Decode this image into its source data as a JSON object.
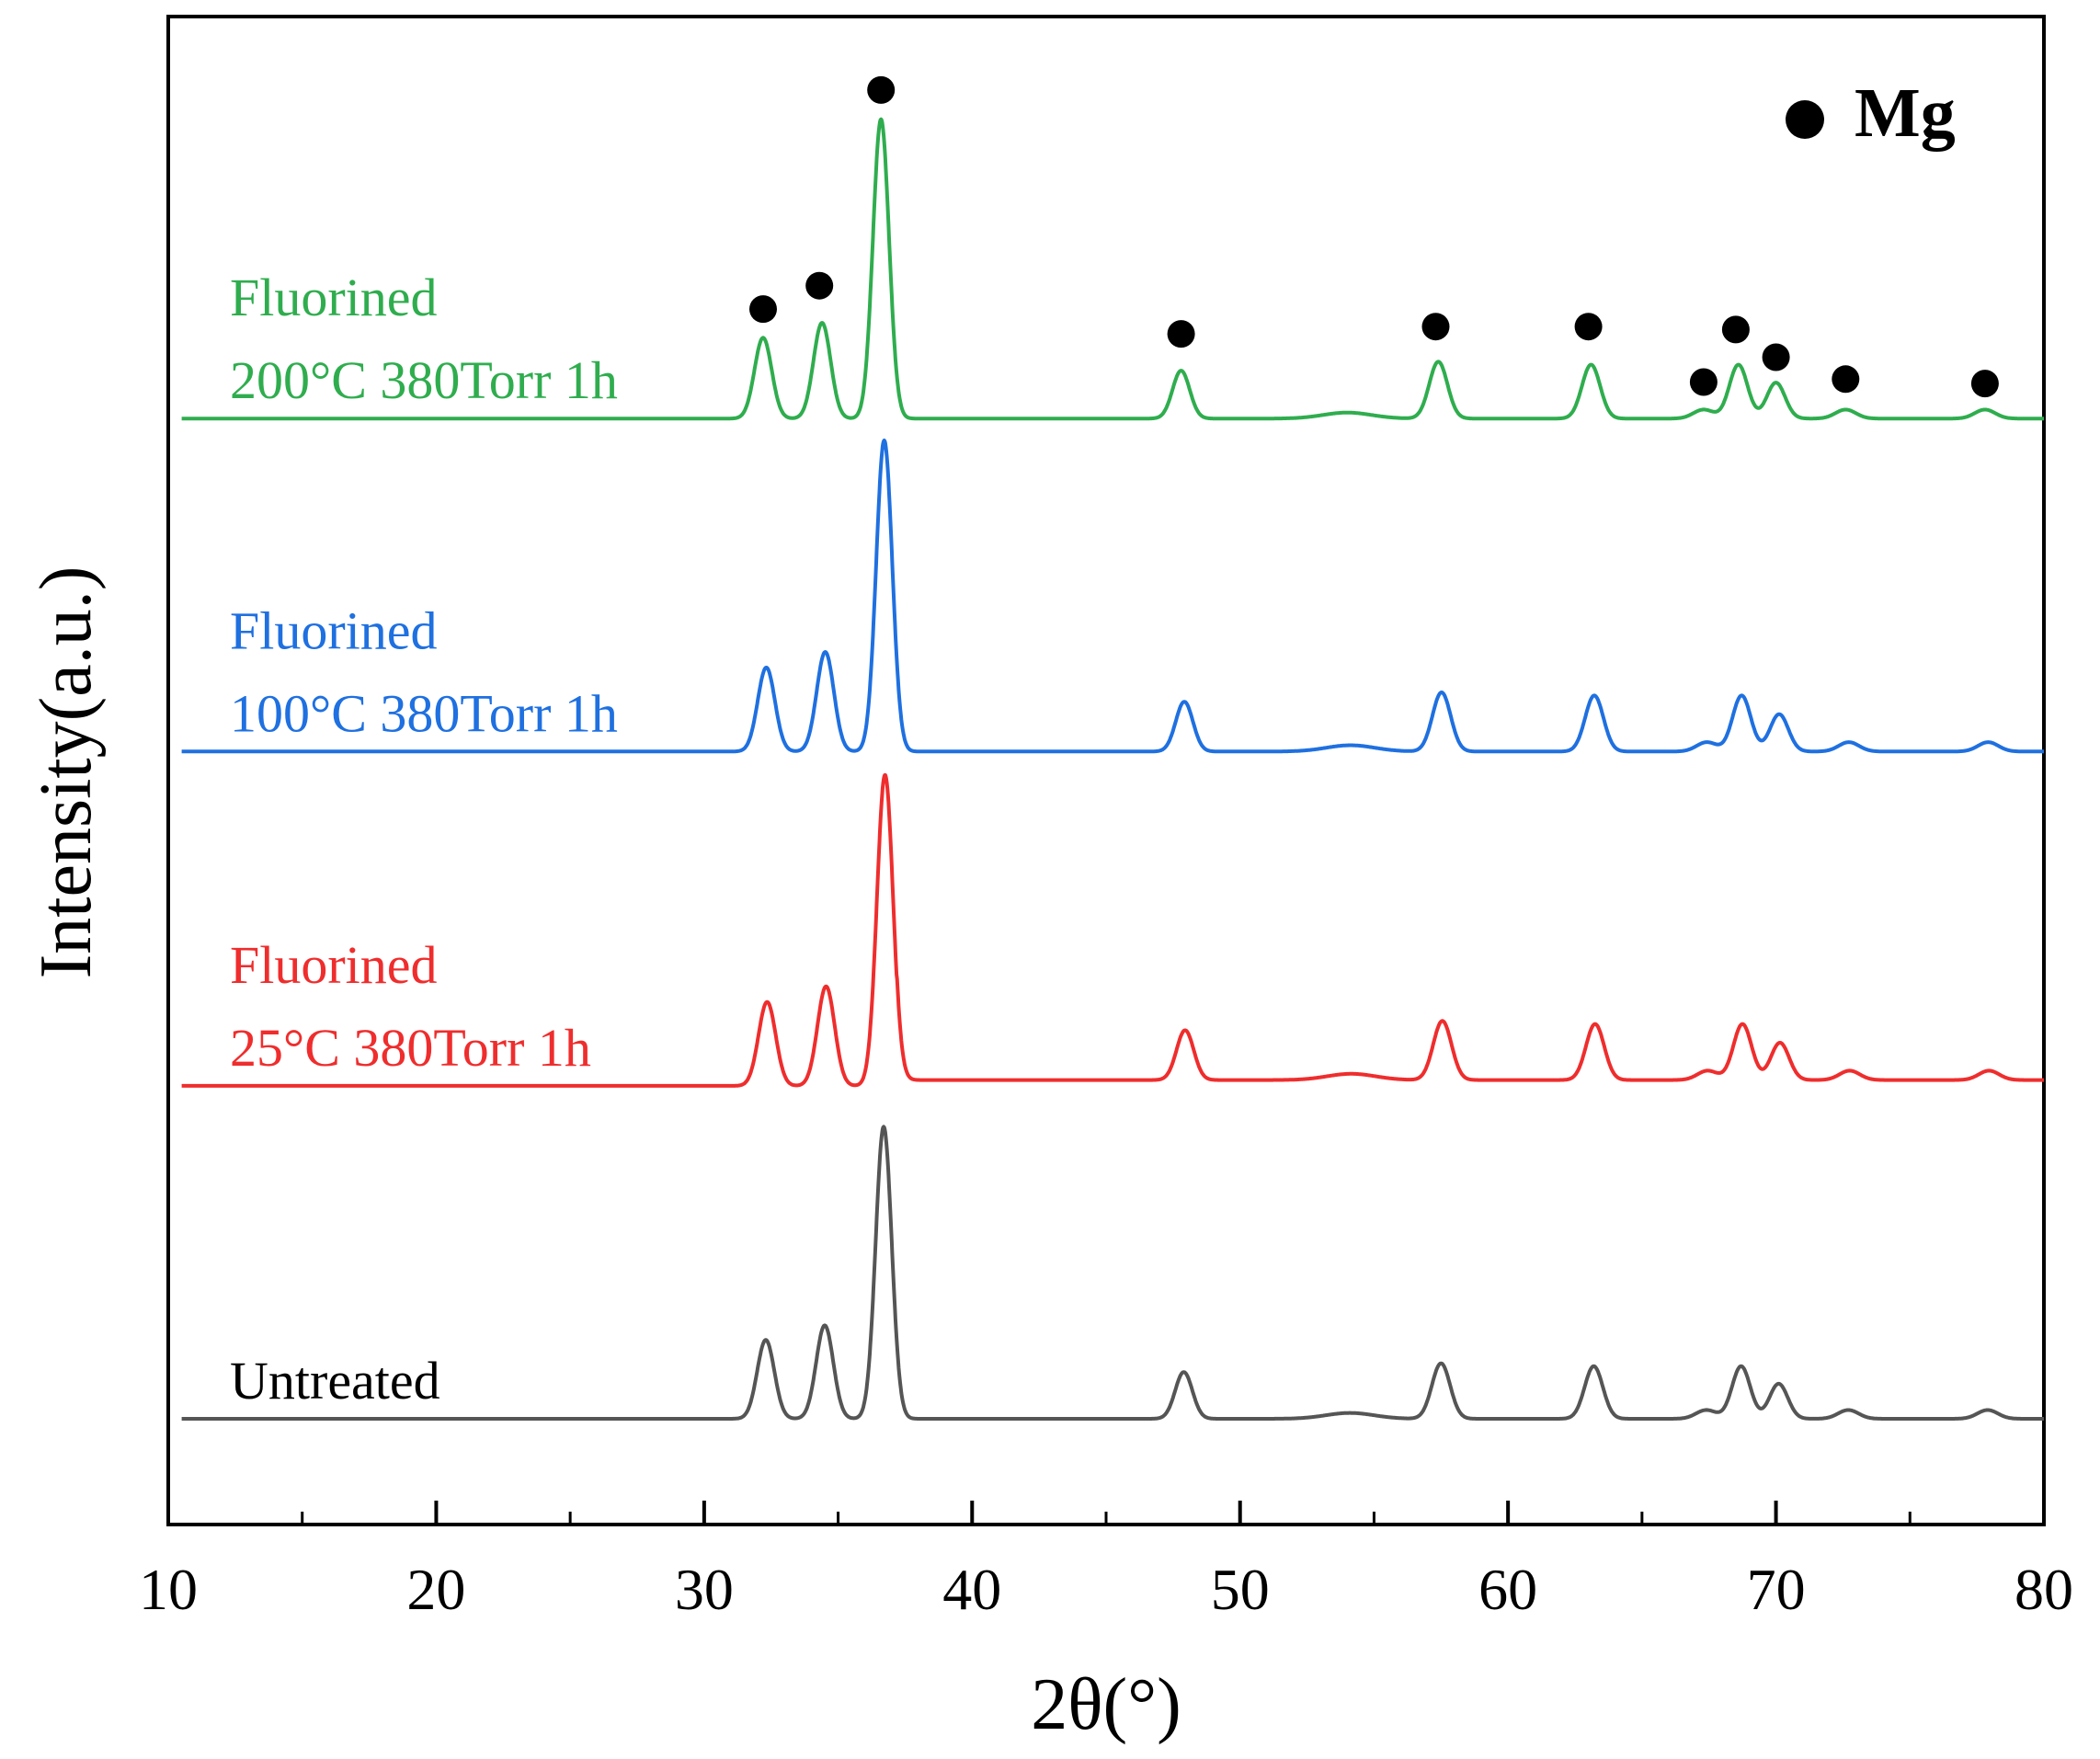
{
  "chart_data": {
    "type": "line",
    "title": "",
    "xlabel": "2θ(°)",
    "ylabel": "Intensity(a.u.)",
    "xlim": [
      10,
      80
    ],
    "xticks": [
      10,
      20,
      30,
      40,
      50,
      60,
      70,
      80
    ],
    "grid": false,
    "legend": {
      "position": "top-right",
      "marker": "filled-circle",
      "label": "Mg",
      "color": "#000000"
    },
    "peaks": [
      {
        "x": 32.2,
        "h": 0.27,
        "w": 0.32
      },
      {
        "x": 34.4,
        "h": 0.32,
        "w": 0.32
      },
      {
        "x": 36.6,
        "h": 1.0,
        "w": 0.3
      },
      {
        "x": 47.8,
        "h": 0.16,
        "w": 0.32
      },
      {
        "x": 54.0,
        "h": 0.02,
        "w": 0.9
      },
      {
        "x": 57.4,
        "h": 0.19,
        "w": 0.34
      },
      {
        "x": 63.1,
        "h": 0.18,
        "w": 0.34
      },
      {
        "x": 67.3,
        "h": 0.03,
        "w": 0.38
      },
      {
        "x": 68.6,
        "h": 0.18,
        "w": 0.34
      },
      {
        "x": 70.0,
        "h": 0.12,
        "w": 0.34
      },
      {
        "x": 72.6,
        "h": 0.03,
        "w": 0.38
      },
      {
        "x": 77.8,
        "h": 0.03,
        "w": 0.38
      }
    ],
    "series": [
      {
        "name": "Untreated",
        "label_lines": [
          "Untreated"
        ],
        "color": "#555555",
        "baseline": 0.0,
        "scale": 0.2,
        "shift": 0.1,
        "step": 0.0
      },
      {
        "name": "Fluorined 25°C 380Torr 1h",
        "label_lines": [
          "Fluorined",
          "25°C 380Torr 1h"
        ],
        "color": "#ef2d2d",
        "baseline": 0.228,
        "scale": 0.213,
        "shift": 0.15,
        "step": 0.004
      },
      {
        "name": "Fluorined 100°C 380Torr 1h",
        "label_lines": [
          "Fluorined",
          "100°C 380Torr 1h"
        ],
        "color": "#1f70e0",
        "baseline": 0.457,
        "scale": 0.213,
        "shift": 0.12,
        "step": 0.0
      },
      {
        "name": "Fluorined 200°C 380Torr 1h",
        "label_lines": [
          "Fluorined",
          "200°C 380Torr 1h"
        ],
        "color": "#2fad4e",
        "baseline": 0.685,
        "scale": 0.205,
        "shift": 0.0,
        "step": 0.0
      }
    ],
    "mg_markers": [
      {
        "x": 32.2,
        "y": 0.76
      },
      {
        "x": 34.3,
        "y": 0.776
      },
      {
        "x": 36.6,
        "y": 0.91
      },
      {
        "x": 47.8,
        "y": 0.743
      },
      {
        "x": 57.3,
        "y": 0.748
      },
      {
        "x": 63.0,
        "y": 0.748
      },
      {
        "x": 67.3,
        "y": 0.71
      },
      {
        "x": 68.5,
        "y": 0.746
      },
      {
        "x": 70.0,
        "y": 0.727
      },
      {
        "x": 72.6,
        "y": 0.712
      },
      {
        "x": 77.8,
        "y": 0.709
      }
    ]
  }
}
